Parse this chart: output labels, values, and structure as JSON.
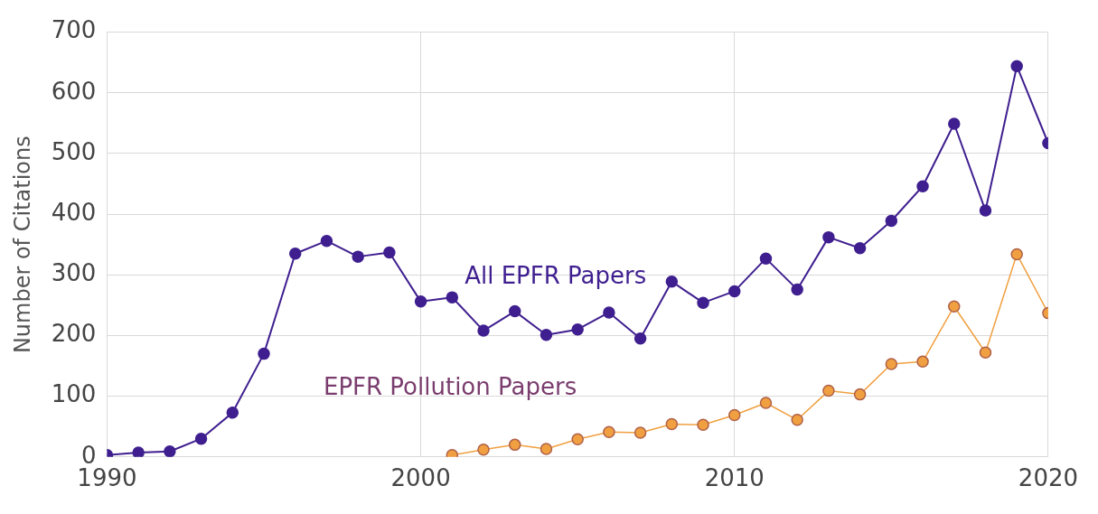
{
  "chart_data": {
    "type": "line",
    "ylabel": "Number of Citations",
    "xlim": [
      1990,
      2020
    ],
    "xticks": [
      1990,
      2000,
      2010,
      2020
    ],
    "ylim": [
      0,
      700
    ],
    "yticks": [
      0,
      100,
      200,
      300,
      400,
      500,
      600,
      700
    ],
    "grid": true,
    "legend": false,
    "marker": "circle",
    "series": [
      {
        "name": "All EPFR Papers",
        "color": "#3f1f8f",
        "x": [
          1990,
          1991,
          1992,
          1993,
          1994,
          1995,
          1996,
          1997,
          1998,
          1999,
          2000,
          2001,
          2002,
          2003,
          2004,
          2005,
          2006,
          2007,
          2008,
          2009,
          2010,
          2011,
          2012,
          2013,
          2014,
          2015,
          2016,
          2017,
          2018,
          2019,
          2020
        ],
        "values": [
          3,
          7,
          9,
          30,
          73,
          170,
          335,
          356,
          330,
          337,
          256,
          263,
          208,
          240,
          201,
          210,
          238,
          195,
          289,
          254,
          273,
          327,
          276,
          362,
          344,
          389,
          446,
          549,
          406,
          644,
          517
        ]
      },
      {
        "name": "EPFR Pollution Papers",
        "color": "#f0a040",
        "x": [
          2001,
          2002,
          2003,
          2004,
          2005,
          2006,
          2007,
          2008,
          2009,
          2010,
          2011,
          2012,
          2013,
          2014,
          2015,
          2016,
          2017,
          2018,
          2019,
          2020
        ],
        "values": [
          3,
          12,
          20,
          13,
          29,
          41,
          40,
          54,
          53,
          69,
          89,
          61,
          109,
          103,
          153,
          157,
          248,
          172,
          334,
          237
        ]
      }
    ]
  }
}
